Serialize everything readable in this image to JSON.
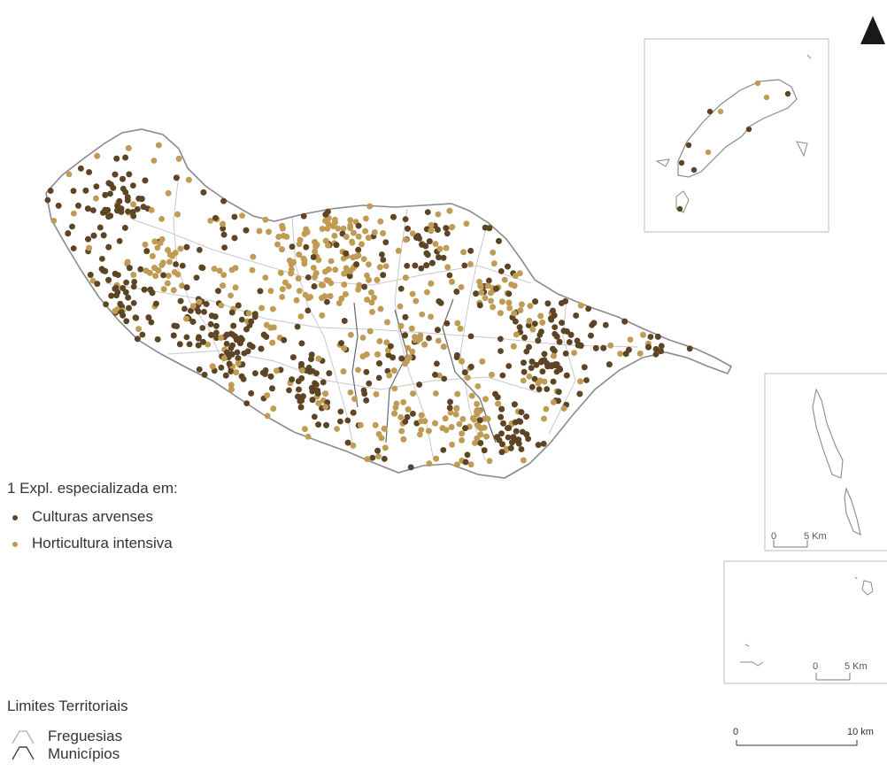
{
  "legend": {
    "title": "1 Expl. especializada em:",
    "items": [
      {
        "label": "Culturas arvenses",
        "color": "#5c4424"
      },
      {
        "label": "Horticultura intensiva",
        "color": "#bf9b54"
      }
    ]
  },
  "limits": {
    "title": "Limites Territoriais",
    "items": [
      {
        "label": "Freguesias",
        "color": "#b0b0b0"
      },
      {
        "label": "Municípios",
        "color": "#444444"
      }
    ]
  },
  "scale_main": {
    "start": "0",
    "end": "10 km"
  },
  "scale_desertas": {
    "start": "0",
    "end": "5 Km"
  },
  "scale_selvagens": {
    "start": "0",
    "end": "5 Km"
  },
  "colors": {
    "outline": "#8a8a8a",
    "arvenses": "#5c4424",
    "horticultura": "#bf9b54"
  }
}
